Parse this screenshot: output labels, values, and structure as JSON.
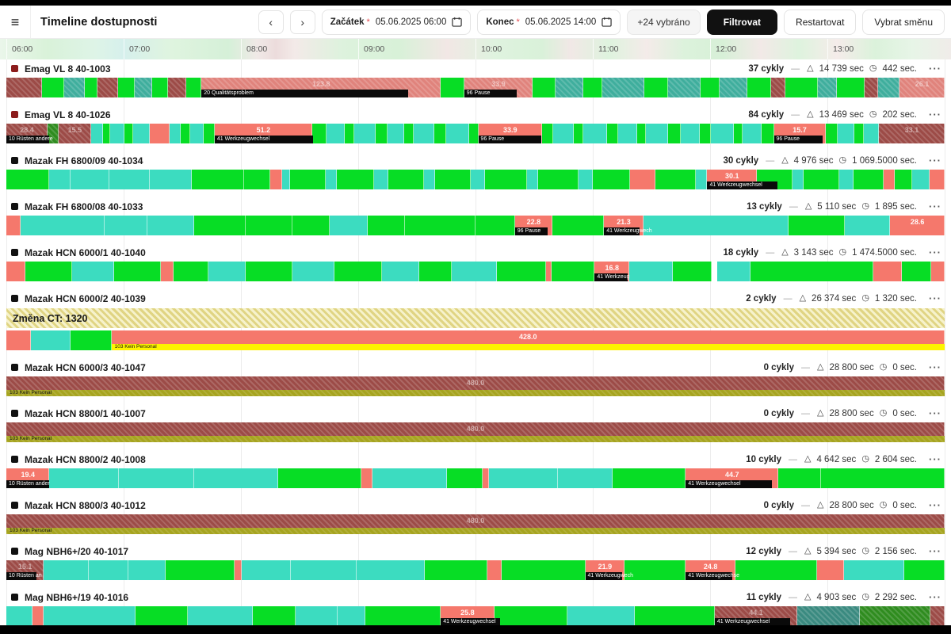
{
  "header": {
    "title": "Timeline dostupnosti",
    "start_label": "Začátek",
    "start_value": "05.06.2025 06:00",
    "end_label": "Konec",
    "end_value": "05.06.2025 14:00",
    "selected_button": "+24 vybráno",
    "filter_button": "Filtrovat",
    "restart_button": "Restartovat",
    "shift_button": "Vybrat směnu"
  },
  "ui": {
    "hamburger": "≡",
    "prev": "‹",
    "next": "›",
    "required_mark": "*",
    "dash": "—",
    "warn_icon": "△",
    "timer_icon": "◷",
    "menu": "···"
  },
  "axis": {
    "hours": [
      "06:00",
      "07:00",
      "08:00",
      "09:00",
      "10:00",
      "11:00",
      "12:00",
      "13:00"
    ]
  },
  "colors": {
    "production_green": "#07dd25",
    "idle_teal": "#3cdcc0",
    "fault_salmon": "#f5786c",
    "fault_salmon_hatch": "#e0837c",
    "downtime_maroon": "#9c4b47",
    "teal_hatch": "#3fae9d",
    "dark_green_hatch": "#2f8c1f",
    "dark_teal_hatch": "#3a8a80",
    "banner_yellow": "#efe7a0",
    "strip_yellow": "#fdf400",
    "strip_olive": "#a6a41f",
    "emag_dot": "#8c1c1c",
    "default_dot": "#111111",
    "primary_button": "#111111"
  },
  "rows": [
    {
      "name": "Emag VL 8 40-1003",
      "dot": "#8c1c1c",
      "cycles": "37 cykly",
      "warn_sec": "14 739 sec",
      "cycle_sec": "442 sec.",
      "banner": null,
      "strip": null,
      "segments": [
        [
          0,
          3.8,
          "mh"
        ],
        [
          3.8,
          2.4,
          "g"
        ],
        [
          6.2,
          2.2,
          "th"
        ],
        [
          8.4,
          1.3,
          "g"
        ],
        [
          9.7,
          2.2,
          "mh"
        ],
        [
          11.9,
          1.8,
          "g"
        ],
        [
          13.7,
          1.8,
          "th"
        ],
        [
          15.5,
          1.7,
          "g"
        ],
        [
          17.2,
          2,
          "mh"
        ],
        [
          19.2,
          1.6,
          "g"
        ],
        [
          20.8,
          25.5,
          "sh",
          "123.8",
          "20 Qualitätsproblem",
          22
        ],
        [
          46.3,
          2.5,
          "g"
        ],
        [
          48.8,
          7.3,
          "sh",
          "33.9",
          "96 Pause",
          5.6
        ],
        [
          56.1,
          2.4,
          "g"
        ],
        [
          58.5,
          3,
          "th"
        ],
        [
          61.5,
          2,
          "g"
        ],
        [
          63.5,
          4.5,
          "th"
        ],
        [
          68,
          2.5,
          "g"
        ],
        [
          70.5,
          3.5,
          "th"
        ],
        [
          74,
          2,
          "g"
        ],
        [
          76,
          3,
          "th"
        ],
        [
          79,
          2.5,
          "g"
        ],
        [
          81.5,
          1.5,
          "mh"
        ],
        [
          83,
          3.5,
          "g"
        ],
        [
          86.5,
          2,
          "th"
        ],
        [
          88.5,
          3,
          "g"
        ],
        [
          91.5,
          1.4,
          "mh"
        ],
        [
          92.9,
          2.3,
          "th"
        ],
        [
          95.2,
          4.8,
          "sh",
          "26.1"
        ]
      ]
    },
    {
      "name": "Emag VL 8 40-1026",
      "dot": "#8c1c1c",
      "cycles": "84 cykly",
      "warn_sec": "13 469 sec",
      "cycle_sec": "202 sec.",
      "banner": null,
      "strip": null,
      "segments": [
        [
          0,
          4.4,
          "mh",
          "28.4",
          "10 Rüsten andere",
          4.6
        ],
        [
          4.4,
          1.2,
          "dgh"
        ],
        [
          5.6,
          3.4,
          "mh",
          "15.5"
        ],
        [
          9,
          1.3,
          "t"
        ],
        [
          10.3,
          0.8,
          "g"
        ],
        [
          11.1,
          1.5,
          "t"
        ],
        [
          12.6,
          0.9,
          "g"
        ],
        [
          13.5,
          1.8,
          "t"
        ],
        [
          15.3,
          2.1,
          "s"
        ],
        [
          17.4,
          1.2,
          "t"
        ],
        [
          18.6,
          1,
          "g"
        ],
        [
          19.6,
          1.4,
          "t"
        ],
        [
          21,
          1.2,
          "g"
        ],
        [
          22.2,
          10.4,
          "s",
          "51.2",
          "41 Werkzeugwechsel",
          10.5
        ],
        [
          32.6,
          1.5,
          "g"
        ],
        [
          34.1,
          2,
          "t"
        ],
        [
          36.1,
          1,
          "g"
        ],
        [
          37.1,
          2.3,
          "t"
        ],
        [
          39.4,
          1.2,
          "g"
        ],
        [
          40.6,
          1.8,
          "t"
        ],
        [
          42.4,
          1,
          "g"
        ],
        [
          43.4,
          2.2,
          "t"
        ],
        [
          45.6,
          1.3,
          "g"
        ],
        [
          46.9,
          2.4,
          "t"
        ],
        [
          49.3,
          1,
          "g"
        ],
        [
          50.3,
          6.8,
          "s",
          "33.9",
          "96 Pause",
          6.7
        ],
        [
          57.1,
          1.2,
          "g"
        ],
        [
          58.3,
          2.2,
          "t"
        ],
        [
          60.5,
          1,
          "g"
        ],
        [
          61.5,
          2.5,
          "t"
        ],
        [
          64,
          1.2,
          "g"
        ],
        [
          65.2,
          2,
          "t"
        ],
        [
          67.2,
          1,
          "g"
        ],
        [
          68.2,
          2.3,
          "t"
        ],
        [
          70.5,
          1.4,
          "g"
        ],
        [
          71.9,
          2,
          "t"
        ],
        [
          73.9,
          1.2,
          "g"
        ],
        [
          75.1,
          2.4,
          "t"
        ],
        [
          77.5,
          1,
          "g"
        ],
        [
          78.5,
          2,
          "t"
        ],
        [
          80.5,
          1.3,
          "g"
        ],
        [
          81.8,
          5.5,
          "s",
          "15.7",
          "96 Pause",
          5.2
        ],
        [
          87.3,
          1.3,
          "g"
        ],
        [
          88.6,
          1.8,
          "t"
        ],
        [
          90.4,
          1,
          "g"
        ],
        [
          91.4,
          1.6,
          "t"
        ],
        [
          93,
          7,
          "mh",
          "33.1"
        ]
      ]
    },
    {
      "name": "Mazak FH 6800/09 40-1034",
      "dot": "#111111",
      "cycles": "30 cykly",
      "warn_sec": "4 976 sec",
      "cycle_sec": "1 069.5000 sec.",
      "banner": null,
      "strip": null,
      "segments": [
        [
          0,
          4.6,
          "g"
        ],
        [
          4.6,
          2.2,
          "t"
        ],
        [
          6.8,
          4.2,
          "t"
        ],
        [
          11,
          4.3,
          "t"
        ],
        [
          15.3,
          4.5,
          "t"
        ],
        [
          19.8,
          5.5,
          "g"
        ],
        [
          25.3,
          2.8,
          "g"
        ],
        [
          28.1,
          1.3,
          "s"
        ],
        [
          29.4,
          0.8,
          "t"
        ],
        [
          30.2,
          3.8,
          "g"
        ],
        [
          34,
          1.2,
          "t"
        ],
        [
          35.2,
          4,
          "g"
        ],
        [
          39.2,
          1.5,
          "t"
        ],
        [
          40.7,
          3.8,
          "g"
        ],
        [
          44.5,
          1.2,
          "t"
        ],
        [
          45.7,
          3.8,
          "g"
        ],
        [
          49.5,
          1.5,
          "t"
        ],
        [
          51,
          4.5,
          "g"
        ],
        [
          55.5,
          1.2,
          "t"
        ],
        [
          56.7,
          4.3,
          "g"
        ],
        [
          61,
          1.5,
          "t"
        ],
        [
          62.5,
          4,
          "g"
        ],
        [
          66.5,
          2.7,
          "s"
        ],
        [
          69.2,
          4.3,
          "g"
        ],
        [
          73.5,
          1.2,
          "t"
        ],
        [
          74.7,
          5.3,
          "s",
          "30.1",
          "41 Werkzeugwechsel",
          7.5
        ],
        [
          80,
          3.8,
          "g"
        ],
        [
          83.8,
          1.2,
          "t"
        ],
        [
          85,
          3.8,
          "g"
        ],
        [
          88.8,
          1.5,
          "t"
        ],
        [
          90.3,
          3.2,
          "g"
        ],
        [
          93.5,
          1.2,
          "s"
        ],
        [
          94.7,
          1.8,
          "g"
        ],
        [
          96.5,
          1.9,
          "t"
        ],
        [
          98.4,
          1.6,
          "s"
        ]
      ]
    },
    {
      "name": "Mazak FH 6800/08 40-1033",
      "dot": "#111111",
      "cycles": "13 cykly",
      "warn_sec": "5 110 sec",
      "cycle_sec": "1 895 sec.",
      "banner": null,
      "strip": null,
      "segments": [
        [
          0,
          1.5,
          "s"
        ],
        [
          1.5,
          9,
          "t"
        ],
        [
          10.5,
          4.5,
          "t"
        ],
        [
          15,
          5,
          "t"
        ],
        [
          20,
          5.5,
          "g"
        ],
        [
          25.5,
          5,
          "g"
        ],
        [
          30.5,
          4,
          "g"
        ],
        [
          34.5,
          4,
          "t"
        ],
        [
          38.5,
          4,
          "g"
        ],
        [
          42.5,
          7.5,
          "g"
        ],
        [
          50,
          4.2,
          "g"
        ],
        [
          54.2,
          4,
          "s",
          "22.8",
          "96 Pause",
          3.5
        ],
        [
          58.2,
          5.5,
          "g"
        ],
        [
          63.7,
          4.2,
          "s",
          "21.3",
          "41 Werkzeugwech",
          3.8
        ],
        [
          67.9,
          15.5,
          "t"
        ],
        [
          83.4,
          6,
          "g"
        ],
        [
          89.4,
          4.8,
          "t"
        ],
        [
          94.2,
          5.8,
          "s",
          "28.6"
        ]
      ]
    },
    {
      "name": "Mazak HCN 6000/1 40-1040",
      "dot": "#111111",
      "cycles": "18 cykly",
      "warn_sec": "3 143 sec",
      "cycle_sec": "1 474.5000 sec.",
      "banner": null,
      "strip": null,
      "segments": [
        [
          0,
          2,
          "s"
        ],
        [
          2,
          5,
          "g"
        ],
        [
          7,
          4.5,
          "t"
        ],
        [
          11.5,
          5,
          "g"
        ],
        [
          16.5,
          1.3,
          "s"
        ],
        [
          17.8,
          3.7,
          "g"
        ],
        [
          21.5,
          4,
          "t"
        ],
        [
          25.5,
          5,
          "g"
        ],
        [
          30.5,
          4.5,
          "t"
        ],
        [
          35,
          5,
          "g"
        ],
        [
          40,
          4,
          "t"
        ],
        [
          44,
          3.5,
          "g"
        ],
        [
          47.5,
          4.8,
          "t"
        ],
        [
          52.3,
          5.2,
          "g"
        ],
        [
          57.5,
          0.6,
          "s"
        ],
        [
          58.1,
          4.6,
          "g"
        ],
        [
          62.7,
          3.7,
          "s",
          "16.8",
          "41 Werkzeug",
          3.5
        ],
        [
          66.4,
          4.6,
          "t"
        ],
        [
          71,
          4.2,
          "g"
        ],
        [
          75.8,
          3.5,
          "t"
        ],
        [
          79.3,
          13.1,
          "g"
        ],
        [
          92.4,
          3,
          "s"
        ],
        [
          95.4,
          3.2,
          "g"
        ],
        [
          98.6,
          1.4,
          "s"
        ]
      ]
    },
    {
      "name": "Mazak HCN 6000/2 40-1039",
      "dot": "#111111",
      "cycles": "2 cykly",
      "warn_sec": "26 374 sec",
      "cycle_sec": "1 320 sec.",
      "banner": "Změna CT: 1320",
      "strip": {
        "x": 11.2,
        "w": 88.8,
        "type": "yellow",
        "text": "103 Kein Personal"
      },
      "segments": [
        [
          0,
          2.6,
          "s"
        ],
        [
          2.6,
          4.2,
          "t"
        ],
        [
          6.8,
          4.4,
          "g"
        ],
        [
          11.2,
          88.8,
          "s",
          "428.0"
        ]
      ]
    },
    {
      "name": "Mazak HCN 6000/3 40-1047",
      "dot": "#111111",
      "cycles": "0 cykly",
      "warn_sec": "28 800 sec",
      "cycle_sec": "0 sec.",
      "banner": null,
      "strip": {
        "x": 0,
        "w": 100,
        "type": "olive",
        "text": "103 Kein Personal"
      },
      "segments": [
        [
          0,
          100,
          "mh",
          "480.0"
        ]
      ]
    },
    {
      "name": "Mazak HCN 8800/1 40-1007",
      "dot": "#111111",
      "cycles": "0 cykly",
      "warn_sec": "28 800 sec",
      "cycle_sec": "0 sec.",
      "banner": null,
      "strip": {
        "x": 0,
        "w": 100,
        "type": "olive",
        "text": "103 Kein Personal"
      },
      "segments": [
        [
          0,
          100,
          "mh",
          "480.0"
        ]
      ]
    },
    {
      "name": "Mazak HCN 8800/2 40-1008",
      "dot": "#111111",
      "cycles": "10 cykly",
      "warn_sec": "4 642 sec",
      "cycle_sec": "2 604 sec.",
      "banner": null,
      "strip": null,
      "segments": [
        [
          0,
          4.6,
          "s",
          "19.4",
          "10 Rüsten ander",
          4.6
        ],
        [
          4.6,
          7.4,
          "t"
        ],
        [
          12,
          8,
          "t"
        ],
        [
          20,
          9,
          "t"
        ],
        [
          29,
          8.8,
          "g"
        ],
        [
          37.8,
          1.2,
          "s"
        ],
        [
          39,
          8,
          "t"
        ],
        [
          47,
          3.8,
          "g"
        ],
        [
          50.8,
          0.6,
          "s"
        ],
        [
          51.4,
          7.4,
          "t"
        ],
        [
          58.8,
          5.8,
          "t"
        ],
        [
          64.6,
          7.8,
          "g"
        ],
        [
          72.4,
          9.9,
          "s",
          "44.7",
          "41 Werkzeugwechsel",
          9.2
        ],
        [
          82.3,
          4.5,
          "g"
        ],
        [
          86.8,
          13.2,
          "g"
        ]
      ]
    },
    {
      "name": "Mazak HCN 8800/3 40-1012",
      "dot": "#111111",
      "cycles": "0 cykly",
      "warn_sec": "28 800 sec",
      "cycle_sec": "0 sec.",
      "banner": null,
      "strip": {
        "x": 0,
        "w": 100,
        "type": "olive",
        "text": "103 Kein Personal"
      },
      "segments": [
        [
          0,
          100,
          "mh",
          "480.0"
        ]
      ]
    },
    {
      "name": "Mag NBH6+/20 40-1017",
      "dot": "#111111",
      "cycles": "12 cykly",
      "warn_sec": "5 394 sec",
      "cycle_sec": "2 156 sec.",
      "banner": null,
      "strip": null,
      "segments": [
        [
          0,
          4,
          "mh",
          "15.1",
          "10 Rüsten an",
          3.2
        ],
        [
          4,
          4.8,
          "t"
        ],
        [
          8.8,
          4.2,
          "t"
        ],
        [
          13,
          4,
          "t"
        ],
        [
          17,
          7.3,
          "g"
        ],
        [
          24.3,
          0.8,
          "s"
        ],
        [
          25.1,
          5.2,
          "t"
        ],
        [
          30.3,
          7,
          "t"
        ],
        [
          37.3,
          7.3,
          "t"
        ],
        [
          44.6,
          6.7,
          "g"
        ],
        [
          51.3,
          1.5,
          "s"
        ],
        [
          52.8,
          8.9,
          "g"
        ],
        [
          61.7,
          4.2,
          "s",
          "21.9",
          "41 Werkzeugwech",
          3.9
        ],
        [
          65.9,
          6.5,
          "g"
        ],
        [
          72.4,
          5.3,
          "s",
          "24.8",
          "41 Werkzeugwechse",
          5
        ],
        [
          77.7,
          8.7,
          "g"
        ],
        [
          86.4,
          2.9,
          "s"
        ],
        [
          89.3,
          6.4,
          "t"
        ],
        [
          95.7,
          4.3,
          "g"
        ]
      ]
    },
    {
      "name": "Mag NBH6+/19 40-1016",
      "dot": "#111111",
      "cycles": "11 cykly",
      "warn_sec": "4 903 sec",
      "cycle_sec": "2 292 sec.",
      "banner": null,
      "strip": null,
      "segments": [
        [
          0,
          2.8,
          "t"
        ],
        [
          2.8,
          1.2,
          "s"
        ],
        [
          4,
          9.8,
          "t"
        ],
        [
          13.8,
          5.5,
          "g"
        ],
        [
          19.3,
          7,
          "t"
        ],
        [
          26.3,
          4.5,
          "g"
        ],
        [
          30.8,
          4.5,
          "t"
        ],
        [
          35.3,
          3,
          "t"
        ],
        [
          38.3,
          8,
          "g"
        ],
        [
          46.3,
          5.7,
          "s",
          "25.8",
          "41 Werkzeugwechsel",
          6.3
        ],
        [
          52,
          7.8,
          "g"
        ],
        [
          59.8,
          7.2,
          "t"
        ],
        [
          67,
          8.5,
          "g"
        ],
        [
          75.5,
          8.8,
          "mh",
          "44.1",
          "41 Werkzeugwechsel",
          8
        ],
        [
          84.3,
          6.7,
          "dth"
        ],
        [
          91,
          7.5,
          "dgh"
        ],
        [
          98.5,
          1.5,
          "mh"
        ]
      ]
    }
  ]
}
